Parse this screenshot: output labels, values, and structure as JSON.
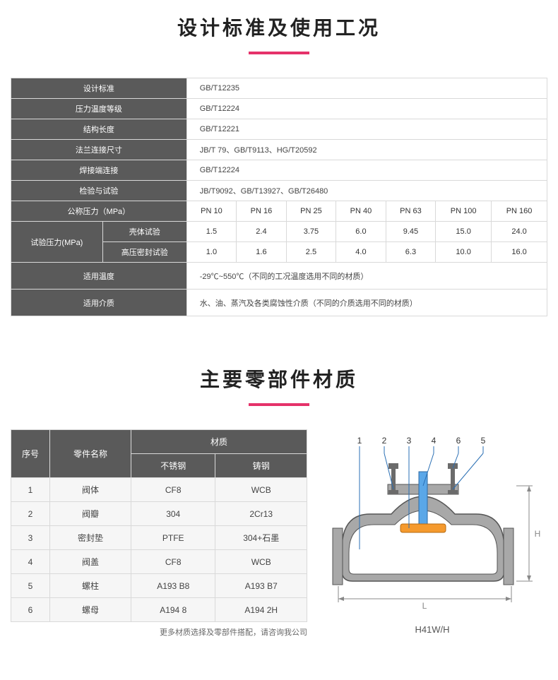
{
  "section1": {
    "title": "设计标准及使用工况",
    "rows_simple": [
      {
        "label": "设计标准",
        "value": "GB/T12235"
      },
      {
        "label": "压力温度等级",
        "value": "GB/T12224"
      },
      {
        "label": "结构长度",
        "value": "GB/T12221"
      },
      {
        "label": "法兰连接尺寸",
        "value": "JB/T 79、GB/T9113、HG/T20592"
      },
      {
        "label": "焊接端连接",
        "value": "GB/T12224"
      },
      {
        "label": "检验与试验",
        "value": "JB/T9092、GB/T13927、GB/T26480"
      }
    ],
    "pn_label": "公称压力（MPa）",
    "pn_heads": [
      "PN 10",
      "PN 16",
      "PN 25",
      "PN 40",
      "PN 63",
      "PN 100",
      "PN 160"
    ],
    "test_label": "试验压力(MPa)",
    "test_rows": [
      {
        "sub": "壳体试验",
        "vals": [
          "1.5",
          "2.4",
          "3.75",
          "6.0",
          "9.45",
          "15.0",
          "24.0"
        ]
      },
      {
        "sub": "高压密封试验",
        "vals": [
          "1.0",
          "1.6",
          "2.5",
          "4.0",
          "6.3",
          "10.0",
          "16.0"
        ]
      }
    ],
    "temp_label": "适用温度",
    "temp_value": "-29℃~550℃（不同的工况温度选用不同的材质）",
    "medium_label": "适用介质",
    "medium_value": "水、油、蒸汽及各类腐蚀性介质（不同的介质选用不同的材质）"
  },
  "section2": {
    "title": "主要零部件材质",
    "col_no": "序号",
    "col_name": "零件名称",
    "col_mat": "材质",
    "col_ss": "不锈钢",
    "col_cs": "铸钢",
    "rows": [
      {
        "no": "1",
        "name": "阀体",
        "ss": "CF8",
        "cs": "WCB"
      },
      {
        "no": "2",
        "name": "阀瓣",
        "ss": "304",
        "cs": "2Cr13"
      },
      {
        "no": "3",
        "name": "密封垫",
        "ss": "PTFE",
        "cs": "304+石墨"
      },
      {
        "no": "4",
        "name": "阀盖",
        "ss": "CF8",
        "cs": "WCB"
      },
      {
        "no": "5",
        "name": "螺柱",
        "ss": "A193 B8",
        "cs": "A193 B7"
      },
      {
        "no": "6",
        "name": "螺母",
        "ss": "A194 8",
        "cs": "A194 2H"
      }
    ],
    "note": "更多材质选择及零部件搭配，请咨询我公司",
    "caption": "H41W/H"
  },
  "diagram": {
    "labels": [
      "1",
      "2",
      "3",
      "4",
      "6",
      "5"
    ],
    "dim_L": "L",
    "dim_H": "H",
    "colors": {
      "body_fill": "#a8a8a8",
      "body_stroke": "#555555",
      "disc_fill": "#f59a2e",
      "stem_fill": "#5aa7e8",
      "bolt_fill": "#6b6b6b",
      "line": "#2a6fb4",
      "dim": "#888888"
    }
  }
}
